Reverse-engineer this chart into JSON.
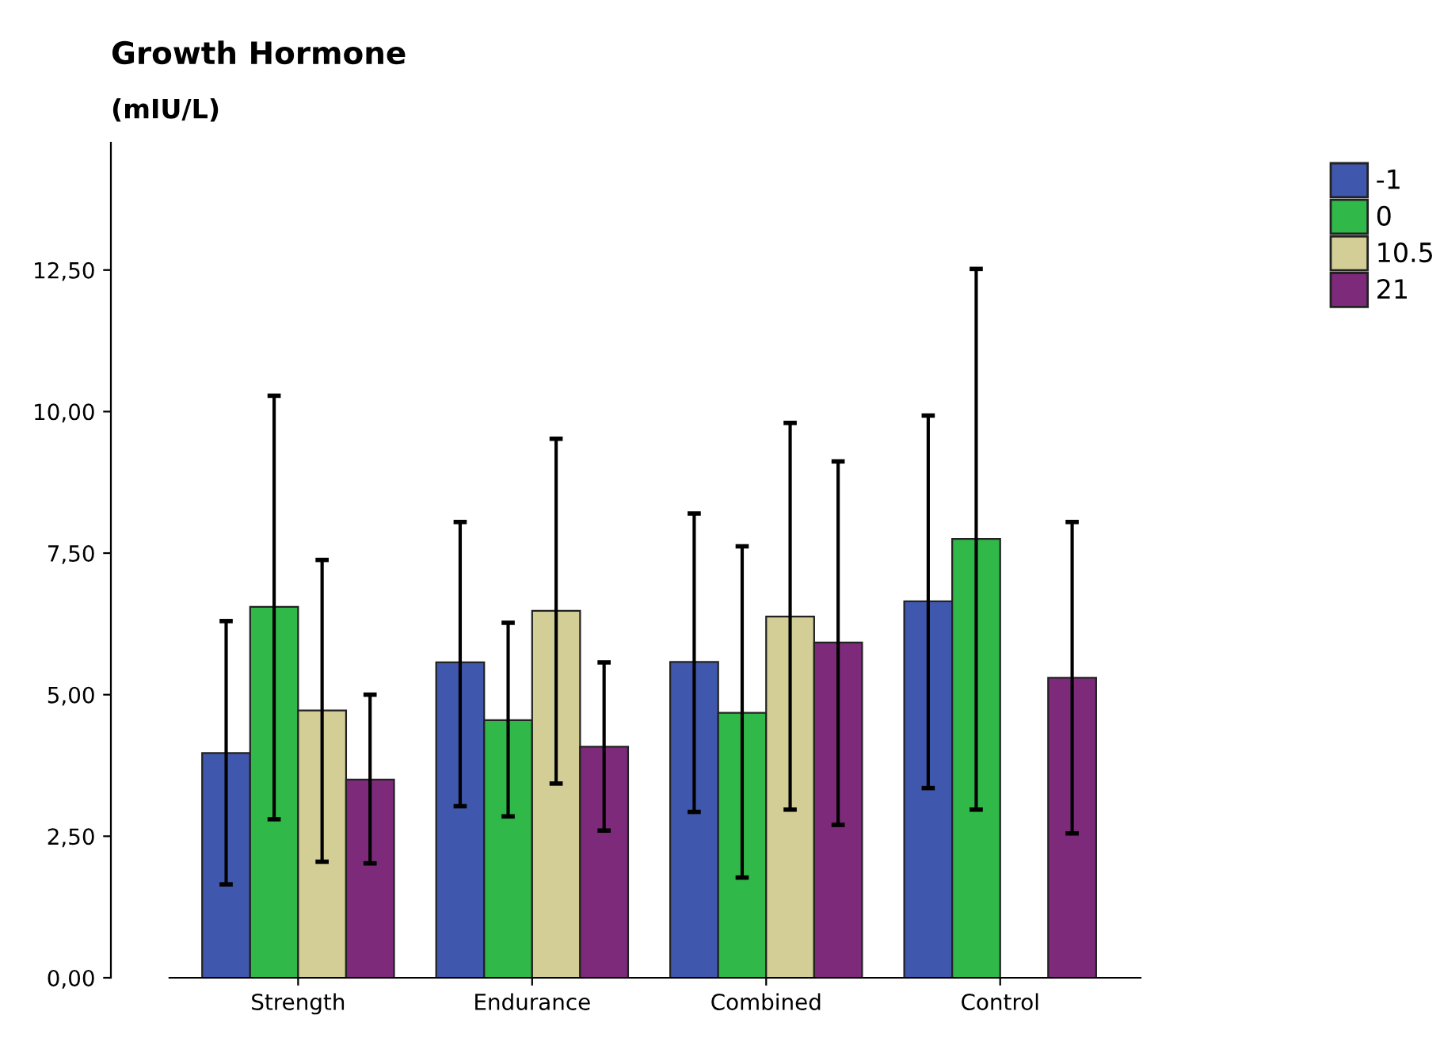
{
  "chart_data": {
    "type": "bar",
    "title": "Growth Hormone",
    "ylabel": "(mIU/L)",
    "categories": [
      "Strength",
      "Endurance",
      "Combined",
      "Control"
    ],
    "series": [
      {
        "name": "-1",
        "color": "#3f58ad",
        "values": [
          3.97,
          5.57,
          5.58,
          6.65
        ],
        "errors": [
          [
            1.65,
            6.3
          ],
          [
            3.03,
            8.05
          ],
          [
            2.93,
            8.2
          ],
          [
            3.35,
            9.93
          ]
        ]
      },
      {
        "name": "0",
        "color": "#30b848",
        "values": [
          6.55,
          4.55,
          4.68,
          7.75
        ],
        "errors": [
          [
            2.8,
            10.28
          ],
          [
            2.85,
            6.27
          ],
          [
            1.77,
            7.62
          ],
          [
            2.97,
            12.52
          ]
        ]
      },
      {
        "name": "10.5",
        "color": "#d3ce96",
        "values": [
          4.72,
          6.48,
          6.38,
          null
        ],
        "errors": [
          [
            2.05,
            7.38
          ],
          [
            3.43,
            9.52
          ],
          [
            2.97,
            9.8
          ],
          null
        ]
      },
      {
        "name": "21",
        "color": "#7d2a7a",
        "values": [
          3.5,
          4.08,
          5.92,
          5.3
        ],
        "errors": [
          [
            2.02,
            5.0
          ],
          [
            2.6,
            5.57
          ],
          [
            2.7,
            9.12
          ],
          [
            2.55,
            8.05
          ]
        ]
      }
    ],
    "ylim": [
      0,
      14.75
    ],
    "yticks": [
      {
        "value": 0,
        "label": "0,00"
      },
      {
        "value": 2.5,
        "label": "2,50"
      },
      {
        "value": 5,
        "label": "5,00"
      },
      {
        "value": 7.5,
        "label": "7,50"
      },
      {
        "value": 10,
        "label": "10,00"
      },
      {
        "value": 12.5,
        "label": "12,50"
      }
    ],
    "grid": false,
    "legend": "top right"
  }
}
